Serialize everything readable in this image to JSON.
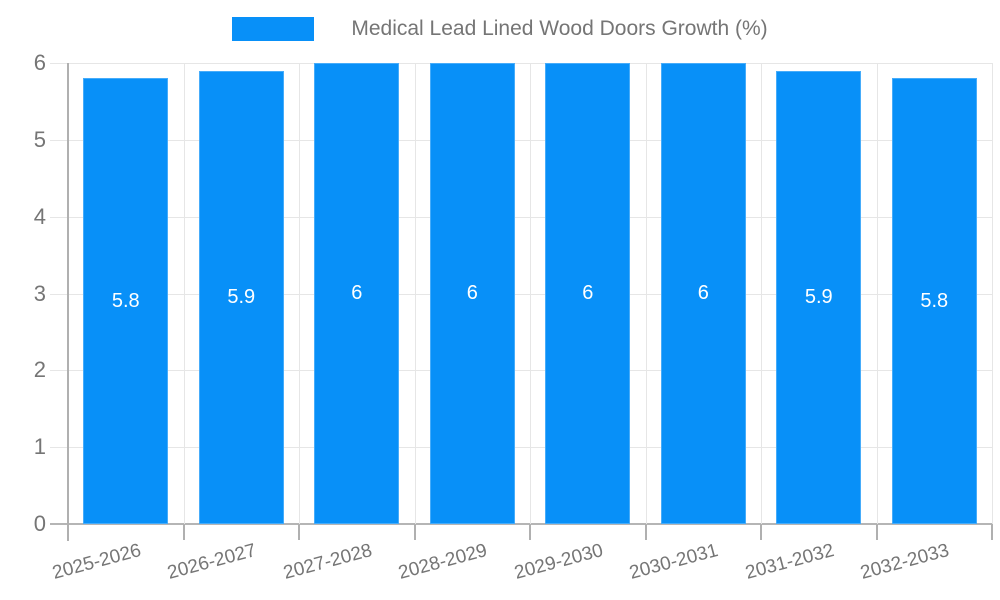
{
  "chart_data": {
    "type": "bar",
    "title": "Medical Lead Lined Wood Doors Growth (%)",
    "legend": {
      "label": "Medical Lead Lined Wood Doors Growth (%)",
      "position": "top"
    },
    "categories": [
      "2025-2026",
      "2026-2027",
      "2027-2028",
      "2028-2029",
      "2029-2030",
      "2030-2031",
      "2031-2032",
      "2032-2033"
    ],
    "values": [
      5.8,
      5.9,
      6,
      6,
      6,
      6,
      5.9,
      5.8
    ],
    "bar_labels": [
      "5.8",
      "5.9",
      "6",
      "6",
      "6",
      "6",
      "5.9",
      "5.8"
    ],
    "xlabel": "",
    "ylabel": "",
    "y_ticks": [
      "0",
      "1",
      "2",
      "3",
      "4",
      "5",
      "6"
    ],
    "ylim": [
      0,
      6
    ],
    "grid": true,
    "colors": {
      "bar": "#0890F8",
      "grid_line": "#e6e6e6",
      "baseline": "#b5b5b5",
      "axis_line": "#b0b0b0",
      "tick_text": "#757575",
      "bar_label_text": "#ffffff",
      "background": "#ffffff"
    }
  }
}
